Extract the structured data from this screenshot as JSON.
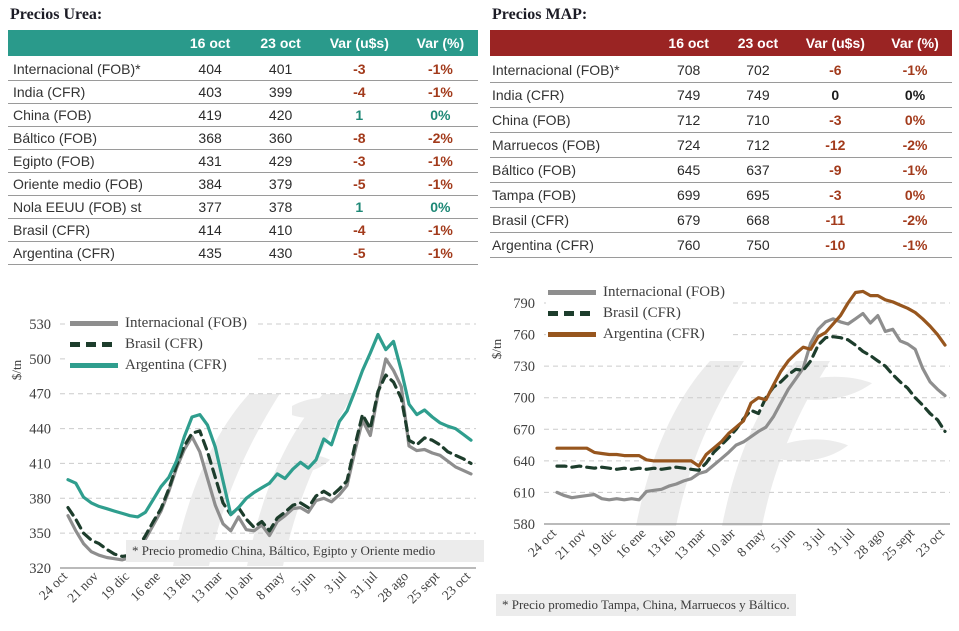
{
  "colors": {
    "negative": "#a23a1b",
    "positive": "#1e8876",
    "flat": "#1a1a1a",
    "gridline": "#cccccc",
    "axis": "#909090",
    "tick_text": "#404040",
    "watermark": "#ececec"
  },
  "panels": [
    {
      "title": "Precios Urea:",
      "table": {
        "header_bg": "#2a9a8b",
        "columns": [
          "",
          "16 oct",
          "23 oct",
          "Var (u$s)",
          "Var (%)"
        ],
        "rows": [
          {
            "label": "Internacional (FOB)*",
            "val_16oct": "404",
            "val_23oct": "401",
            "var_usd": "-3",
            "var_pct": "-1%",
            "trend": "down"
          },
          {
            "label": "India (CFR)",
            "val_16oct": "403",
            "val_23oct": "399",
            "var_usd": "-4",
            "var_pct": "-1%",
            "trend": "down"
          },
          {
            "label": "China (FOB)",
            "val_16oct": "419",
            "val_23oct": "420",
            "var_usd": "1",
            "var_pct": "0%",
            "trend": "up"
          },
          {
            "label": "Báltico (FOB)",
            "val_16oct": "368",
            "val_23oct": "360",
            "var_usd": "-8",
            "var_pct": "-2%",
            "trend": "down"
          },
          {
            "label": "Egipto (FOB)",
            "val_16oct": "431",
            "val_23oct": "429",
            "var_usd": "-3",
            "var_pct": "-1%",
            "trend": "down"
          },
          {
            "label": "Oriente medio (FOB)",
            "val_16oct": "384",
            "val_23oct": "379",
            "var_usd": "-5",
            "var_pct": "-1%",
            "trend": "down"
          },
          {
            "label": "Nola EEUU (FOB) st",
            "val_16oct": "377",
            "val_23oct": "378",
            "var_usd": "1",
            "var_pct": "0%",
            "trend": "up"
          },
          {
            "label": "Brasil (CFR)",
            "val_16oct": "414",
            "val_23oct": "410",
            "var_usd": "-4",
            "var_pct": "-1%",
            "trend": "down"
          },
          {
            "label": "Argentina (CFR)",
            "val_16oct": "435",
            "val_23oct": "430",
            "var_usd": "-5",
            "var_pct": "-1%",
            "trend": "down"
          }
        ]
      }
    },
    {
      "title": "Precios MAP:",
      "table": {
        "header_bg": "#9a2423",
        "columns": [
          "",
          "16 oct",
          "23 oct",
          "Var (u$s)",
          "Var (%)"
        ],
        "rows": [
          {
            "label": "Internacional (FOB)*",
            "val_16oct": "708",
            "val_23oct": "702",
            "var_usd": "-6",
            "var_pct": "-1%",
            "trend": "down"
          },
          {
            "label": "India (CFR)",
            "val_16oct": "749",
            "val_23oct": "749",
            "var_usd": "0",
            "var_pct": "0%",
            "trend": "flat"
          },
          {
            "label": "China (FOB)",
            "val_16oct": "712",
            "val_23oct": "710",
            "var_usd": "-3",
            "var_pct": "0%",
            "trend": "down"
          },
          {
            "label": "Marruecos (FOB)",
            "val_16oct": "724",
            "val_23oct": "712",
            "var_usd": "-12",
            "var_pct": "-2%",
            "trend": "down"
          },
          {
            "label": "Báltico (FOB)",
            "val_16oct": "645",
            "val_23oct": "637",
            "var_usd": "-9",
            "var_pct": "-1%",
            "trend": "down"
          },
          {
            "label": "Tampa (FOB)",
            "val_16oct": "699",
            "val_23oct": "695",
            "var_usd": "-3",
            "var_pct": "0%",
            "trend": "down"
          },
          {
            "label": "Brasil (CFR)",
            "val_16oct": "679",
            "val_23oct": "668",
            "var_usd": "-11",
            "var_pct": "-2%",
            "trend": "down"
          },
          {
            "label": "Argentina (CFR)",
            "val_16oct": "760",
            "val_23oct": "750",
            "var_usd": "-10",
            "var_pct": "-1%",
            "trend": "down"
          }
        ]
      }
    }
  ],
  "chart_data": [
    {
      "type": "line",
      "title": "Precios Urea",
      "ylabel": "$/tn",
      "ylim": [
        320,
        530
      ],
      "yticks": [
        530,
        500,
        470,
        440,
        410,
        380,
        350,
        320
      ],
      "xticks": [
        "24 oct",
        "21 nov",
        "19 dic",
        "16 ene",
        "13 feb",
        "13 mar",
        "10 abr",
        "8 may",
        "5 jun",
        "3 jul",
        "31 jul",
        "28 ago",
        "25 sept",
        "23 oct"
      ],
      "xtick_every": 4,
      "grid": "dashed-horizontal",
      "legend_position": "top-left",
      "watermark_text": "IF",
      "footnote": "* Precio promedio China, Báltico, Egipto y Oriente medio",
      "series": [
        {
          "name": "Internacional (FOB)",
          "color": "#8e8e8e",
          "dash": "solid",
          "values": [
            365,
            352,
            341,
            334,
            331,
            329,
            328,
            327,
            329,
            335,
            345,
            357,
            369,
            386,
            406,
            422,
            433,
            420,
            397,
            374,
            358,
            352,
            364,
            353,
            352,
            357,
            348,
            360,
            365,
            371,
            372,
            368,
            378,
            380,
            377,
            383,
            391,
            420,
            447,
            434,
            470,
            500,
            490,
            476,
            425,
            421,
            422,
            419,
            417,
            412,
            407,
            404,
            401
          ]
        },
        {
          "name": "Brasil (CFR)",
          "color": "#1d3d2c",
          "dash": "dashed",
          "values": [
            372,
            362,
            350,
            344,
            341,
            336,
            332,
            330,
            331,
            337,
            348,
            360,
            371,
            388,
            408,
            425,
            436,
            438,
            420,
            398,
            376,
            366,
            372,
            362,
            355,
            360,
            352,
            363,
            368,
            374,
            376,
            372,
            382,
            386,
            382,
            388,
            395,
            425,
            452,
            440,
            472,
            486,
            480,
            466,
            430,
            426,
            432,
            430,
            426,
            420,
            417,
            414,
            410
          ]
        },
        {
          "name": "Argentina (CFR)",
          "color": "#2f9e8e",
          "dash": "solid",
          "values": [
            396,
            393,
            381,
            376,
            373,
            371,
            369,
            367,
            365,
            364,
            368,
            379,
            390,
            398,
            412,
            433,
            450,
            452,
            443,
            424,
            395,
            366,
            372,
            380,
            385,
            389,
            393,
            401,
            397,
            405,
            411,
            406,
            413,
            431,
            426,
            446,
            455,
            472,
            490,
            505,
            521,
            508,
            515,
            490,
            461,
            452,
            456,
            450,
            445,
            442,
            440,
            435,
            430
          ]
        }
      ]
    },
    {
      "type": "line",
      "title": "Precios MAP",
      "ylabel": "$/tn",
      "ylim": [
        580,
        790
      ],
      "yticks": [
        790,
        760,
        730,
        700,
        670,
        640,
        610,
        580
      ],
      "xticks": [
        "24 oct",
        "21 nov",
        "19 dic",
        "16 ene",
        "13 feb",
        "13 mar",
        "10 abr",
        "8 may",
        "5 jun",
        "3 jul",
        "31 jul",
        "28 ago",
        "25 sept",
        "23 oct"
      ],
      "xtick_every": 4,
      "grid": "dashed-horizontal",
      "legend_position": "top-left",
      "watermark_text": "IF",
      "footnote": "* Precio promedio Tampa, China, Marruecos y Báltico.",
      "series": [
        {
          "name": "Internacional (FOB)",
          "color": "#8e8e8e",
          "dash": "solid",
          "values": [
            610,
            607,
            605,
            606,
            607,
            608,
            604,
            603,
            604,
            603,
            604,
            603,
            611,
            612,
            613,
            616,
            618,
            621,
            623,
            628,
            630,
            636,
            642,
            648,
            655,
            658,
            663,
            668,
            672,
            682,
            695,
            708,
            718,
            728,
            752,
            765,
            772,
            775,
            772,
            770,
            775,
            780,
            771,
            778,
            763,
            765,
            754,
            751,
            746,
            728,
            715,
            708,
            702
          ]
        },
        {
          "name": "Brasil (CFR)",
          "color": "#1d3d2c",
          "dash": "dashed",
          "values": [
            635,
            635,
            634,
            635,
            634,
            633,
            634,
            633,
            632,
            633,
            632,
            633,
            632,
            633,
            632,
            633,
            634,
            633,
            632,
            631,
            638,
            648,
            655,
            662,
            670,
            680,
            688,
            685,
            700,
            710,
            715,
            722,
            727,
            726,
            735,
            750,
            757,
            758,
            757,
            755,
            750,
            744,
            740,
            735,
            730,
            722,
            715,
            709,
            700,
            693,
            685,
            679,
            668
          ]
        },
        {
          "name": "Argentina (CFR)",
          "color": "#97561e",
          "dash": "solid",
          "values": [
            652,
            652,
            652,
            652,
            652,
            648,
            647,
            646,
            646,
            645,
            645,
            645,
            641,
            640,
            640,
            640,
            640,
            640,
            640,
            635,
            646,
            652,
            658,
            666,
            672,
            678,
            695,
            700,
            698,
            712,
            725,
            735,
            742,
            748,
            746,
            758,
            762,
            770,
            778,
            790,
            800,
            801,
            797,
            797,
            793,
            791,
            788,
            785,
            781,
            775,
            768,
            760,
            750
          ]
        }
      ]
    }
  ]
}
